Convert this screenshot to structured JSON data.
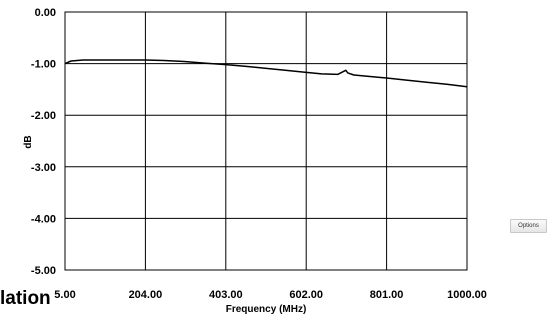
{
  "page": {
    "clipped_title": "lation",
    "options_label": "Options"
  },
  "chart_data": {
    "type": "line",
    "xlabel": "Frequency (MHz)",
    "ylabel": "dB",
    "xlim": [
      5,
      1000
    ],
    "ylim": [
      -5,
      0
    ],
    "x_ticks": [
      "5.00",
      "204.00",
      "403.00",
      "602.00",
      "801.00",
      "1000.00"
    ],
    "x_tick_values": [
      5,
      204,
      403,
      602,
      801,
      1000
    ],
    "y_ticks": [
      "0.00",
      "-1.00",
      "-2.00",
      "-3.00",
      "-4.00",
      "-5.00"
    ],
    "y_tick_values": [
      0,
      -1,
      -2,
      -3,
      -4,
      -5
    ],
    "grid": true,
    "series": [
      {
        "color": "#000000",
        "x": [
          5,
          20,
          50,
          100,
          150,
          204,
          250,
          300,
          350,
          403,
          450,
          500,
          550,
          602,
          640,
          680,
          695,
          700,
          705,
          720,
          760,
          801,
          850,
          900,
          950,
          1000
        ],
        "y": [
          -1.0,
          -0.95,
          -0.93,
          -0.93,
          -0.93,
          -0.93,
          -0.94,
          -0.96,
          -0.99,
          -1.02,
          -1.05,
          -1.09,
          -1.13,
          -1.17,
          -1.2,
          -1.21,
          -1.15,
          -1.13,
          -1.18,
          -1.22,
          -1.25,
          -1.28,
          -1.32,
          -1.36,
          -1.4,
          -1.45
        ]
      }
    ]
  }
}
